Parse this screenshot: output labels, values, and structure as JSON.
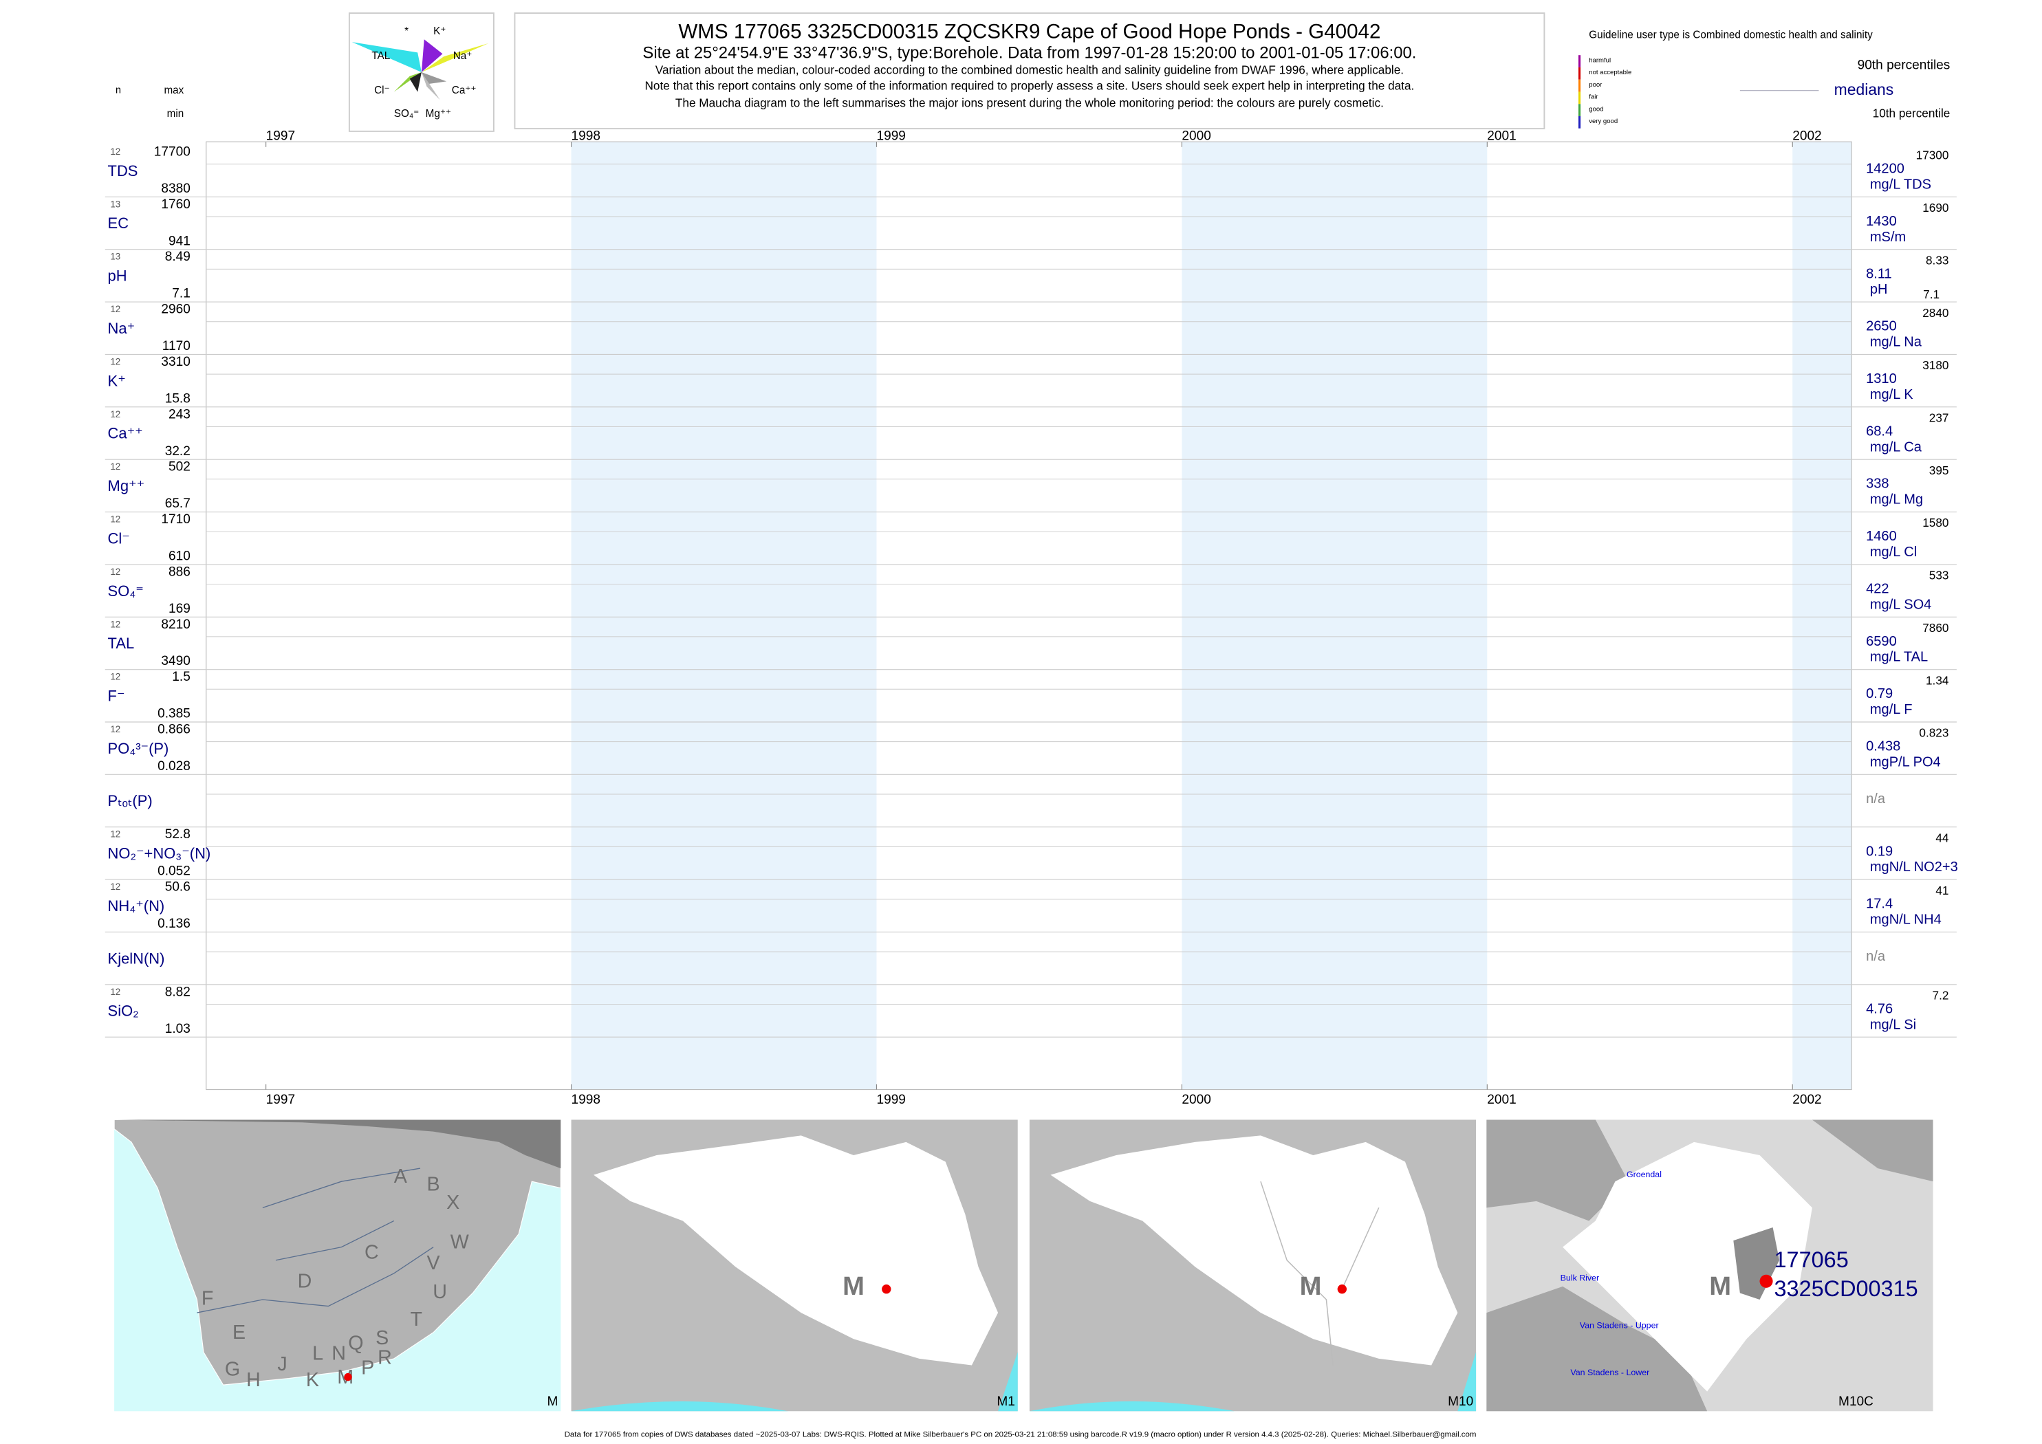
{
  "header": {
    "title": "WMS 177065 3325CD00315 ZQCSKR9 Cape of Good Hope Ponds - G40042",
    "subtitle": "Site at 25°24'54.9\"E 33°47'36.9\"S, type:Borehole.  Data from 1997-01-28 15:20:00 to 2001-01-05 17:06:00.",
    "notes": [
      "Variation about the median,  colour-coded according to the combined domestic health and salinity guideline from DWAF 1996, where applicable.",
      "Note that this report contains only some of the information required to properly assess a site. Users should seek expert help in interpreting the data.",
      "The Maucha diagram to the left summarises the major ions present during the whole monitoring period: the colours are purely cosmetic."
    ]
  },
  "maucha": {
    "labels": [
      "*",
      "K⁺",
      "TAL",
      "Na⁺",
      "Cl⁻",
      "Ca⁺⁺",
      "SO₄⁼",
      "Mg⁺⁺"
    ]
  },
  "legend": {
    "title": "Guideline user type is Combined domestic health and salinity",
    "classes": [
      {
        "name": "harmful",
        "color": "#9b009b"
      },
      {
        "name": "not acceptable",
        "color": "#d40000"
      },
      {
        "name": "poor",
        "color": "#ff7f00"
      },
      {
        "name": "fair",
        "color": "#e6d600"
      },
      {
        "name": "good",
        "color": "#3fa53f"
      },
      {
        "name": "very good",
        "color": "#1f1fbf"
      }
    ],
    "p90": "90th percentiles",
    "median": "medians",
    "p10": "10th percentile"
  },
  "left_header": {
    "n": "n",
    "max": "max",
    "min": "min"
  },
  "years": [
    1997,
    1998,
    1999,
    2000,
    2001,
    2002
  ],
  "rows": [
    {
      "name": "TDS",
      "n": 12,
      "max": 17700,
      "min": 8380,
      "median": 14200,
      "unit": "mg/L TDS",
      "p90": 17300
    },
    {
      "name": "EC",
      "n": 13,
      "max": 1760,
      "min": 941,
      "median": 1430,
      "unit": "mS/m",
      "p90": 1690
    },
    {
      "name": "pH",
      "n": 13,
      "max": 8.49,
      "min": 7.1,
      "median": 8.11,
      "unit": "pH",
      "p90": 8.33,
      "p10": 7.1
    },
    {
      "name": "Na⁺",
      "n": 12,
      "max": 2960,
      "min": 1170,
      "median": 2650,
      "unit": "mg/L Na",
      "p90": 2840
    },
    {
      "name": "K⁺",
      "n": 12,
      "max": 3310,
      "min": 15.8,
      "median": 1310,
      "unit": "mg/L K",
      "p90": 3180
    },
    {
      "name": "Ca⁺⁺",
      "n": 12,
      "max": 243,
      "min": 32.2,
      "median": 68.4,
      "unit": "mg/L Ca",
      "p90": 237
    },
    {
      "name": "Mg⁺⁺",
      "n": 12,
      "max": 502,
      "min": 65.7,
      "median": 338,
      "unit": "mg/L Mg",
      "p90": 395
    },
    {
      "name": "Cl⁻",
      "n": 12,
      "max": 1710,
      "min": 610,
      "median": 1460,
      "unit": "mg/L Cl",
      "p90": 1580
    },
    {
      "name": "SO₄⁼",
      "n": 12,
      "max": 886,
      "min": 169,
      "median": 422,
      "unit": "mg/L SO4",
      "p90": 533
    },
    {
      "name": "TAL",
      "n": 12,
      "max": 8210,
      "min": 3490,
      "median": 6590,
      "unit": "mg/L TAL",
      "p90": 7860
    },
    {
      "name": "F⁻",
      "n": 12,
      "max": 1.5,
      "min": 0.385,
      "median": 0.79,
      "unit": "mg/L F",
      "p90": 1.34
    },
    {
      "name": "PO₄³⁻(P)",
      "n": 12,
      "max": 0.866,
      "min": 0.028,
      "median": 0.438,
      "unit": "mgP/L PO4",
      "p90": 0.823
    },
    {
      "name": "Pₜₒₜ(P)",
      "median": "n/a"
    },
    {
      "name": "NO₂⁻+NO₃⁻(N)",
      "n": 12,
      "max": 52.8,
      "min": 0.052,
      "median": 0.19,
      "unit": "mgN/L NO2+3",
      "p90": 44
    },
    {
      "name": "NH₄⁺(N)",
      "n": 12,
      "max": 50.6,
      "min": 0.136,
      "median": 17.4,
      "unit": "mgN/L NH4",
      "p90": 41
    },
    {
      "name": "KjelN(N)",
      "median": "n/a"
    },
    {
      "name": "SiO₂",
      "n": 12,
      "max": 8.82,
      "min": 1.03,
      "median": 4.76,
      "unit": "mg/L Si",
      "p90": 7.2
    }
  ],
  "maps": [
    {
      "label": "M",
      "letters": [
        "A",
        "B",
        "X",
        "W",
        "C",
        "V",
        "D",
        "U",
        "T",
        "F",
        "E",
        "S",
        "Q",
        "R",
        "L",
        "N",
        "P",
        "G",
        "H",
        "J",
        "K",
        "M"
      ]
    },
    {
      "label": "M1",
      "marker": "M"
    },
    {
      "label": "M10",
      "marker": "M"
    },
    {
      "label": "M10C",
      "marker": "M",
      "places": [
        "Groendal",
        "Bulk River",
        "Van Stadens - Upper",
        "Van Stadens - Lower"
      ],
      "site": [
        "177065",
        "3325CD00315"
      ]
    }
  ],
  "footer": "Data for 177065 from copies of DWS databases dated ~2025-03-07 Labs: DWS-RQIS. Plotted at Mike Silberbauer's PC on 2025-03-21 21:08:59 using barcode.R v19.9 (macro option) under R version 4.4.3 (2025-02-28). Queries: Michael.Silberbauer@gmail.com"
}
